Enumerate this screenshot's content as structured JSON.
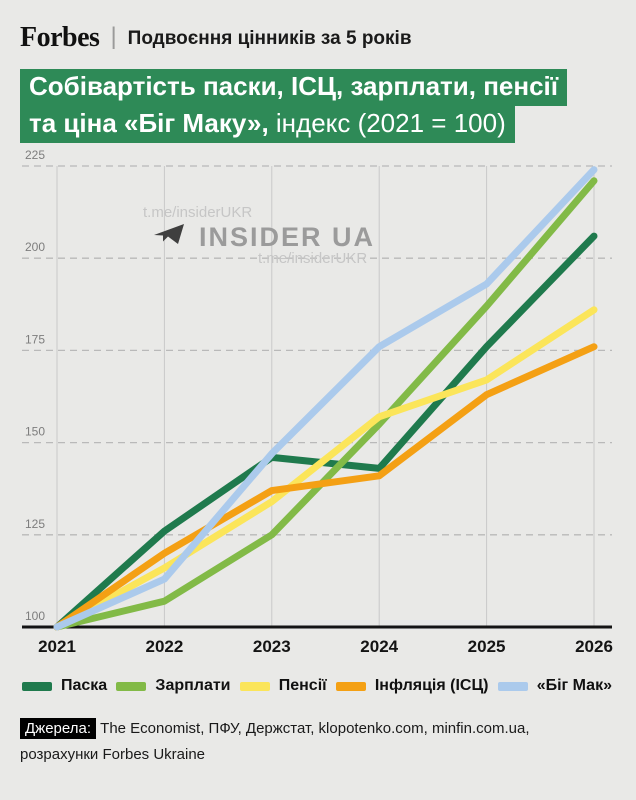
{
  "header": {
    "logo": "Forbes",
    "separator": "|",
    "headline": "Подвоєння цінників за 5 років"
  },
  "title": {
    "line1": "Собівартість паски, ІСЦ, зарплати, пенсії",
    "line2_bold": "та ціна «Біг Маку», ",
    "line2_regular": "індекс (2021 = 100)"
  },
  "watermark": {
    "handle": "t.me/insiderUKR",
    "name": "INSIDER UA",
    "icon": "telegram-paper-plane-icon"
  },
  "chart_data": {
    "type": "line",
    "title": "Собівартість паски, ІСЦ, зарплати, пенсії та ціна «Біг Маку», індекс (2021 = 100)",
    "xlabel": "",
    "ylabel": "",
    "x": [
      2021,
      2022,
      2023,
      2024,
      2025,
      2026
    ],
    "y_ticks": [
      100,
      125,
      150,
      175,
      200,
      225
    ],
    "ylim": [
      100,
      225
    ],
    "grid": {
      "vertical": "solid",
      "horizontal": "dashed"
    },
    "legend_position": "bottom",
    "series": [
      {
        "name": "Паска",
        "color": "#1f7a4d",
        "values": [
          100,
          126,
          146,
          143,
          176,
          206
        ]
      },
      {
        "name": "Зарплати",
        "color": "#82ba47",
        "values": [
          100,
          107,
          125,
          155,
          187,
          221
        ]
      },
      {
        "name": "Пенсії",
        "color": "#fbe55a",
        "values": [
          100,
          116,
          134,
          157,
          167,
          186
        ]
      },
      {
        "name": "Інфляція (ІСЦ)",
        "color": "#f4a014",
        "values": [
          100,
          120,
          137,
          141,
          163,
          176
        ]
      },
      {
        "name": "«Біг Мак»",
        "color": "#abcaec",
        "values": [
          100,
          113,
          147,
          176,
          193,
          224
        ]
      }
    ]
  },
  "colors": {
    "background": "#e9e9e7",
    "title_highlight": "#2e8a57",
    "axis": "#141414",
    "grid_vertical": "#c9c9c9",
    "grid_dashed": "#b9b9b9"
  },
  "footer": {
    "sources_label": "Джерела:",
    "sources_line1": "The Economist, ПФУ, Держстат, klopotenko.com, minfin.com.ua,",
    "sources_line2": "розрахунки Forbes Ukraine"
  }
}
